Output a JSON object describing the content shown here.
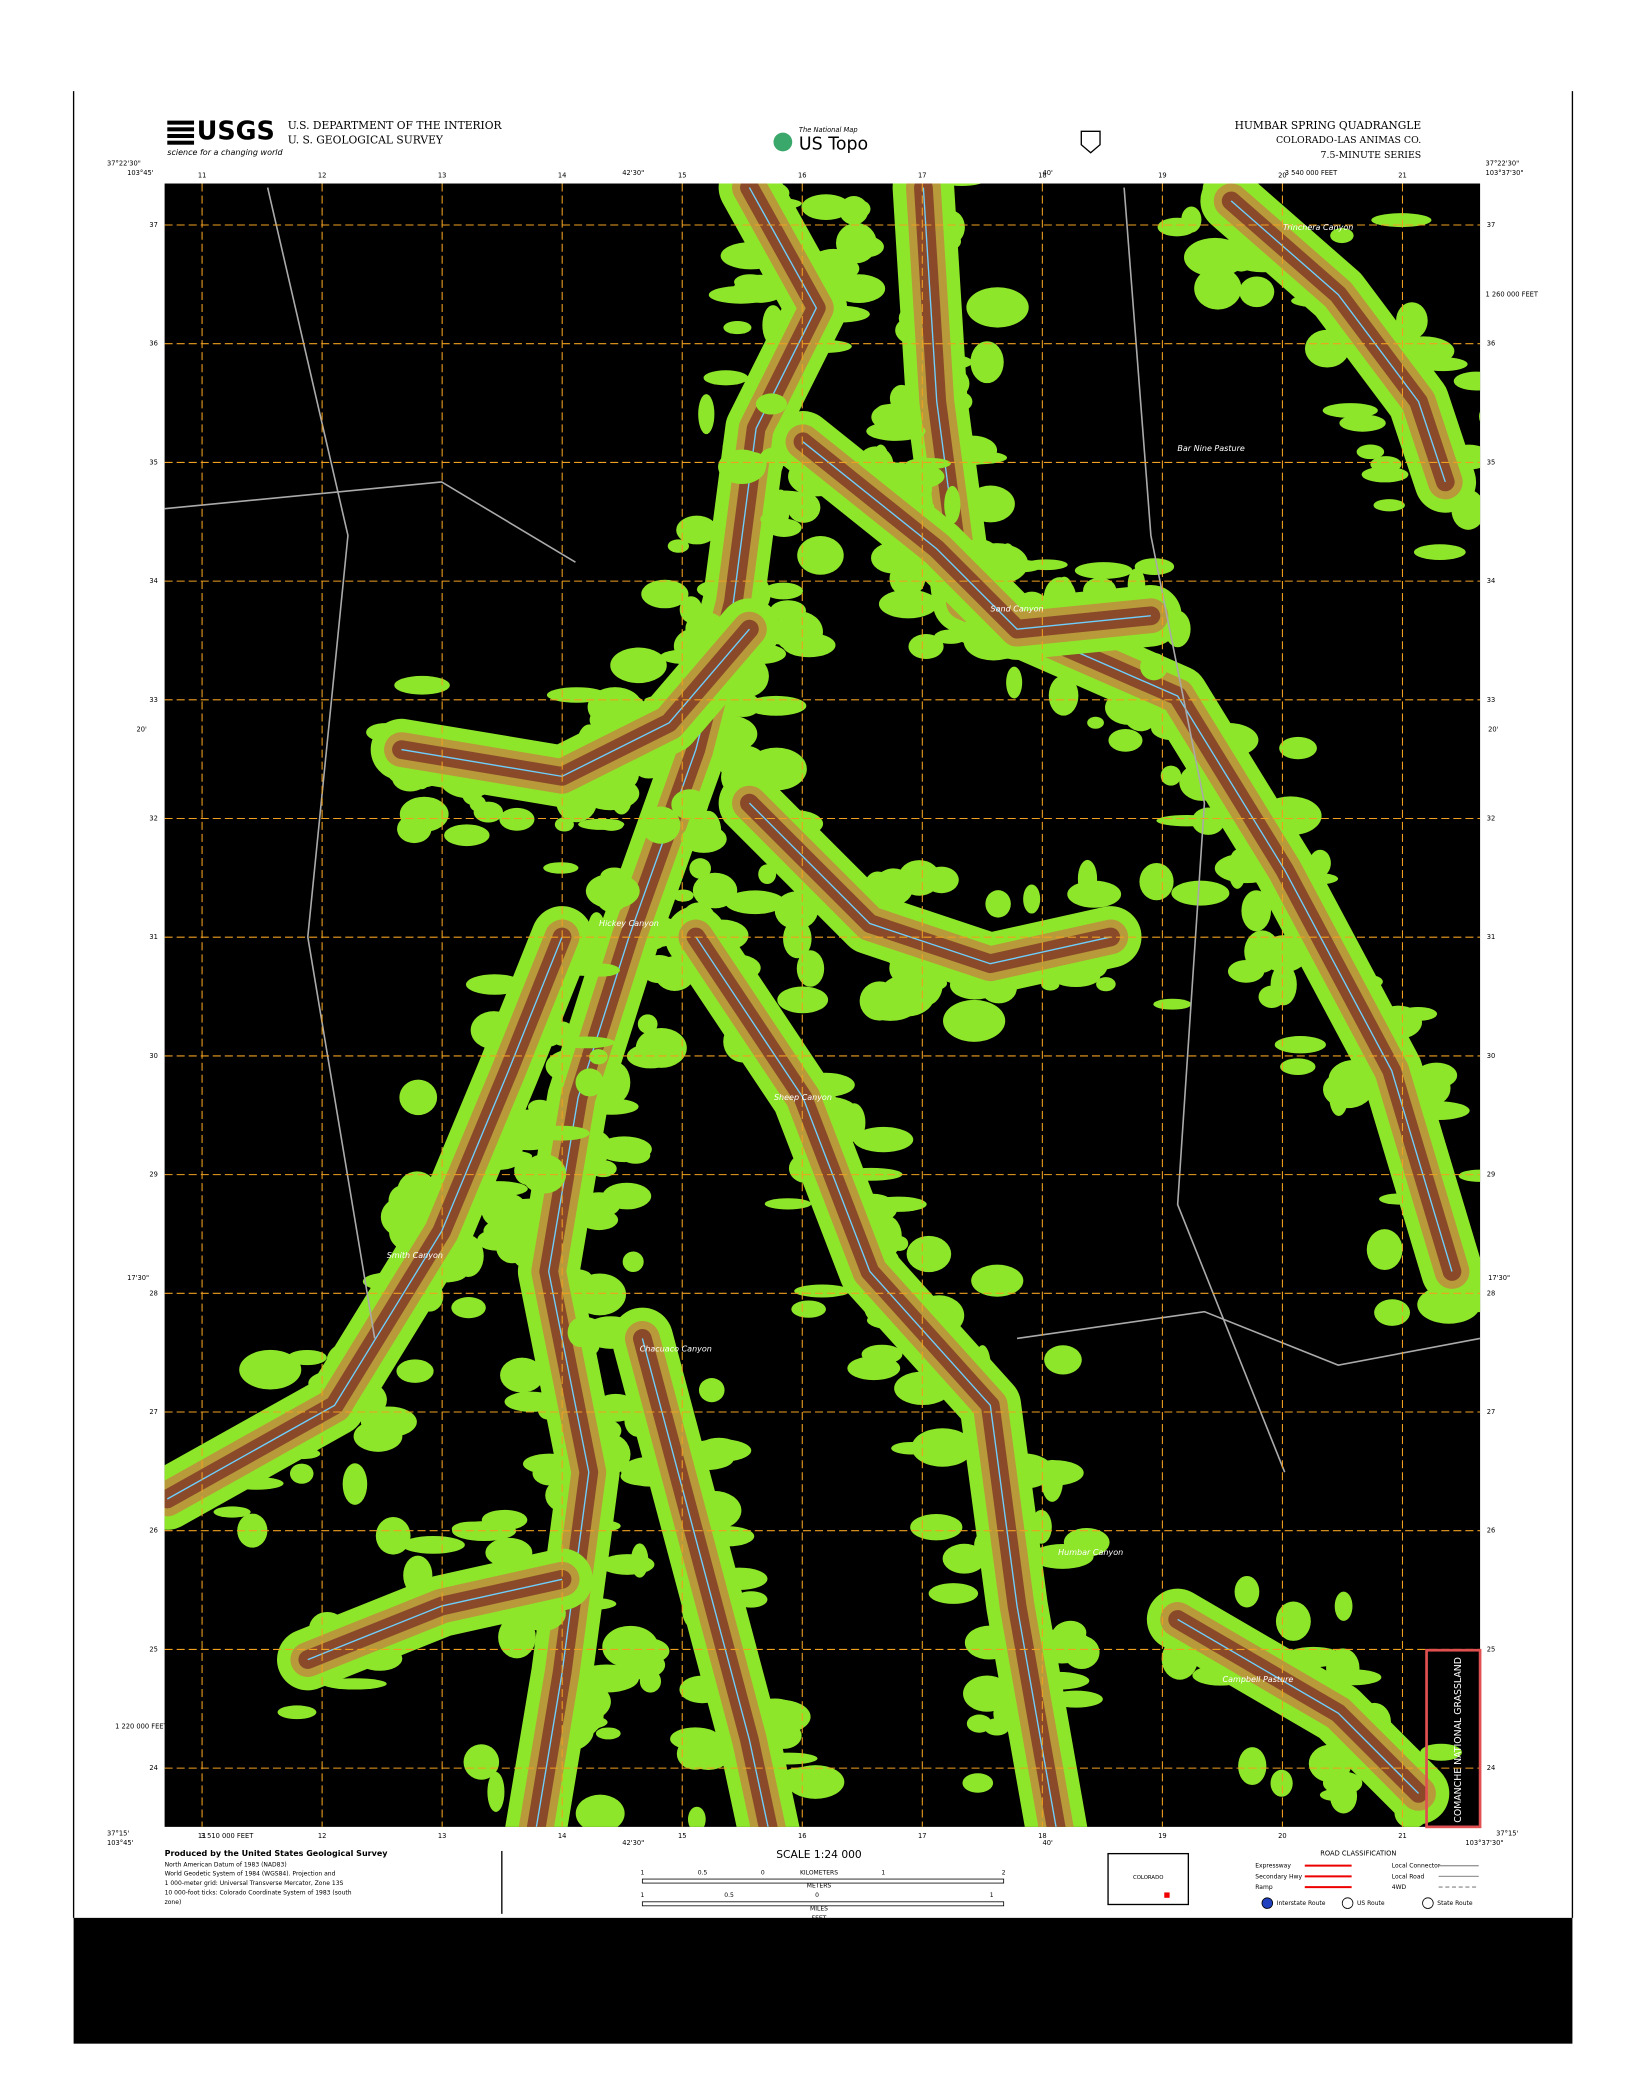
{
  "header": {
    "agency_lines": [
      "U.S. DEPARTMENT OF THE INTERIOR",
      "U. S. GEOLOGICAL SURVEY"
    ],
    "logo": "USGS",
    "tagline": "science for a changing world",
    "national_map": "The National Map",
    "us_topo": "US Topo",
    "quadrangle": [
      "HUMBAR SPRING QUADRANGLE",
      "COLORADO-LAS ANIMAS CO.",
      "7.5-MINUTE SERIES"
    ]
  },
  "map": {
    "west_lon": "103°45'",
    "east_lon": "103°37'30\"",
    "north_lat": "37°22'30\"",
    "south_lat": "37°15'",
    "minutes_lon": [
      "42'30\"",
      "40'"
    ],
    "minutes_lat": [
      "20'",
      "17'30\""
    ],
    "easting_labels": [
      "11",
      "12",
      "13",
      "14",
      "15",
      "16",
      "17",
      "18",
      "19",
      "20",
      "21"
    ],
    "northing_labels": [
      "37",
      "36",
      "35",
      "34",
      "33",
      "32",
      "31",
      "30",
      "29",
      "28",
      "27",
      "26",
      "25",
      "24"
    ],
    "feet_labels": [
      "3 540 000 FEET",
      "1 260 000 FEET",
      "3 510 000 FEET",
      "1 220 000 FEET"
    ],
    "place_names": [
      "Trinchera Canyon",
      "Bar Nine Pasture",
      "Hickey Canyon",
      "Sheep Canyon",
      "Smith Canyon",
      "Chacuaco Canyon",
      "Humbar Canyon",
      "Campbell Pasture",
      "Sand Canyon"
    ],
    "grassland": "COMANCHE NATIONAL GRASSLAND"
  },
  "footer": {
    "producer": "Produced by the United States Geological Survey",
    "notes": [
      "North American Datum of 1983 (NAD83)",
      "World Geodetic System of 1984 (WGS84). Projection and",
      "1 000-meter grid: Universal Transverse Mercator, Zone 13S",
      "10 000-foot ticks: Colorado Coordinate System of 1983 (south",
      "zone)"
    ],
    "scale": "SCALE 1:24 000",
    "km_ticks": [
      "1",
      "0.5",
      "0",
      "1",
      "2"
    ],
    "mile_ticks": [
      "1",
      "0.5",
      "0",
      "1"
    ],
    "units": [
      "KILOMETERS",
      "METERS",
      "MILES",
      "FEET"
    ],
    "state": "COLORADO",
    "road_title": "ROAD CLASSIFICATION",
    "roads_left": [
      "Expressway",
      "Secondary Hwy",
      "Ramp"
    ],
    "roads_right": [
      "Local Connector",
      "Local Road",
      "4WD"
    ],
    "shields": [
      "Interstate Route",
      "US Route",
      "State Route"
    ]
  }
}
